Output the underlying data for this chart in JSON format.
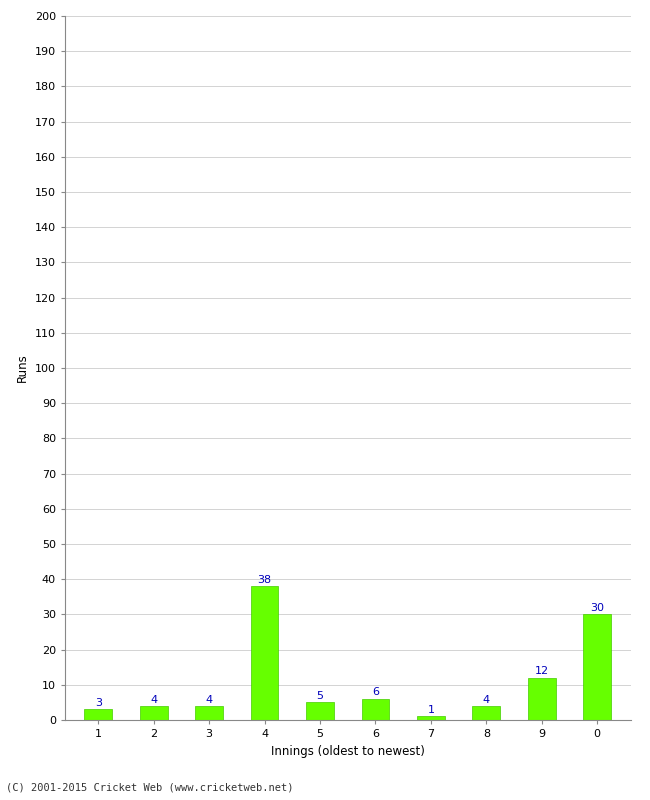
{
  "categories": [
    "1",
    "2",
    "3",
    "4",
    "5",
    "6",
    "7",
    "8",
    "9",
    "0"
  ],
  "values": [
    3,
    4,
    4,
    38,
    5,
    6,
    1,
    4,
    12,
    30
  ],
  "bar_color": "#66ff00",
  "bar_edge_color": "#44cc00",
  "xlabel": "Innings (oldest to newest)",
  "ylabel": "Runs",
  "ylim": [
    0,
    200
  ],
  "yticks": [
    0,
    10,
    20,
    30,
    40,
    50,
    60,
    70,
    80,
    90,
    100,
    110,
    120,
    130,
    140,
    150,
    160,
    170,
    180,
    190,
    200
  ],
  "label_color": "#0000bb",
  "background_color": "#ffffff",
  "grid_color": "#cccccc",
  "footer": "(C) 2001-2015 Cricket Web (www.cricketweb.net)"
}
